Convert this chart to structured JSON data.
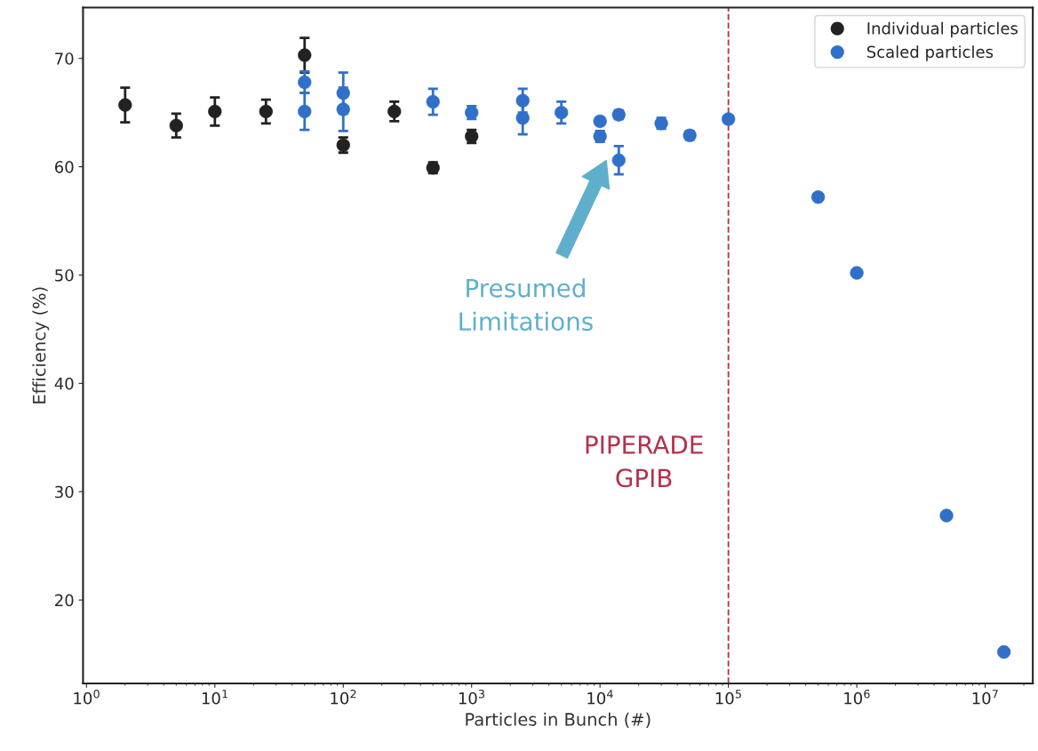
{
  "chart_data": {
    "type": "scatter",
    "xlabel": "Particles in Bunch (#)",
    "ylabel": "Efficiency (%)",
    "series": [
      {
        "name": "Individual particles",
        "color": "#222222",
        "x": [
          2,
          5,
          10,
          25,
          50,
          100,
          250,
          500,
          1000
        ],
        "values": [
          65.7,
          63.8,
          65.1,
          65.1,
          70.3,
          62.0,
          65.1,
          59.9,
          62.8
        ],
        "errors": [
          1.6,
          1.1,
          1.3,
          1.1,
          1.6,
          0.7,
          0.9,
          0.5,
          0.6
        ]
      },
      {
        "name": "Scaled particles",
        "color": "#3070c8",
        "x": [
          50,
          50,
          100,
          100,
          500,
          1000,
          2500,
          2500,
          5000,
          10000,
          10000,
          14000,
          14000,
          30000,
          50000,
          100000,
          500000,
          1000000,
          5000000,
          14000000
        ],
        "values": [
          67.8,
          65.1,
          66.8,
          65.3,
          66.0,
          65.0,
          66.1,
          64.5,
          65.0,
          64.2,
          62.8,
          64.8,
          60.6,
          64.0,
          62.9,
          64.4,
          57.2,
          50.2,
          27.8,
          15.2
        ],
        "errors": [
          1.0,
          1.7,
          1.9,
          2.0,
          1.2,
          0.6,
          1.1,
          1.5,
          1.0,
          0.3,
          0.5,
          0.4,
          1.3,
          0.5,
          0.4,
          0.3,
          null,
          null,
          null,
          null
        ]
      }
    ],
    "log": "x",
    "marker": "circle",
    "grid": false,
    "legend": "top right",
    "xlim": [
      0.94,
      23500000
    ],
    "ylim": [
      12.3,
      74.7
    ],
    "xticks": [
      {
        "value": 1,
        "label": "10$^{0}$"
      },
      {
        "value": 10,
        "label": "10$^{1}$"
      },
      {
        "value": 100,
        "label": "10$^{2}$"
      },
      {
        "value": 1000,
        "label": "10$^{3}$"
      },
      {
        "value": 10000,
        "label": "10$^{4}$"
      },
      {
        "value": 100000,
        "label": "10$^{5}$"
      },
      {
        "value": 1000000,
        "label": "10$^{6}$"
      },
      {
        "value": 10000000,
        "label": "10$^{7}$"
      }
    ],
    "yticks": [
      20,
      30,
      40,
      50,
      60,
      70
    ],
    "ref_lines": [
      {
        "axis": "x",
        "value": 100000,
        "label": "PIPERADE\nGPIB",
        "color": "#b5304a",
        "line_style": "dashed"
      }
    ],
    "annotations": [
      "Presumed\nLimitations"
    ]
  }
}
